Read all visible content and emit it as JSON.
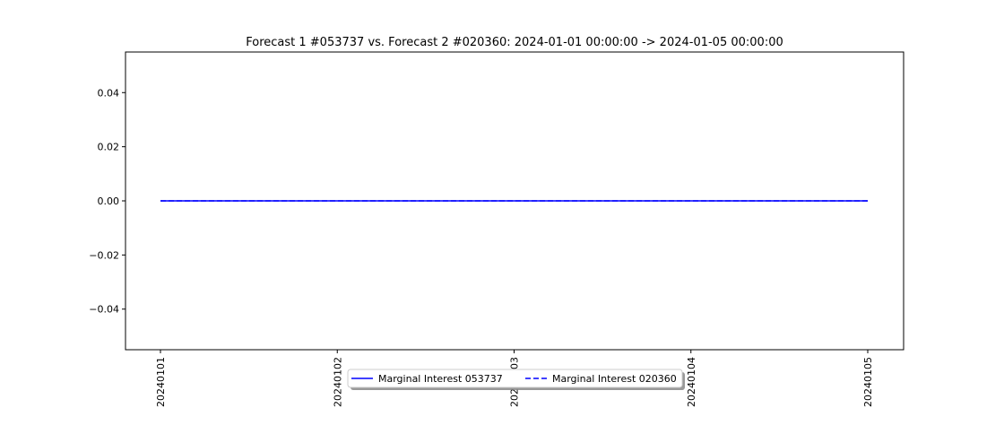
{
  "chart_data": {
    "type": "line",
    "title": "Forecast 1 #053737 vs. Forecast 2 #020360: 2024-01-01 00:00:00 -> 2024-01-05 00:00:00",
    "xlabel": "",
    "ylabel": "",
    "x": [
      "20240101",
      "20240102",
      "20240103",
      "20240104",
      "20240105"
    ],
    "ylim": [
      -0.055,
      0.055
    ],
    "yticks": [
      0.04,
      0.02,
      0.0,
      -0.02,
      -0.04
    ],
    "ytick_labels": [
      "0.04",
      "0.02",
      "0.00",
      "−0.02",
      "−0.04"
    ],
    "grid": false,
    "legend_position": "bottom-center",
    "series": [
      {
        "name": "Marginal Interest 053737",
        "values": [
          0,
          0,
          0,
          0,
          0
        ],
        "color": "#0000ff",
        "style": "solid"
      },
      {
        "name": "Marginal Interest 020360",
        "values": [
          0,
          0,
          0,
          0,
          0
        ],
        "color": "#0000ff",
        "style": "dashed"
      }
    ]
  }
}
